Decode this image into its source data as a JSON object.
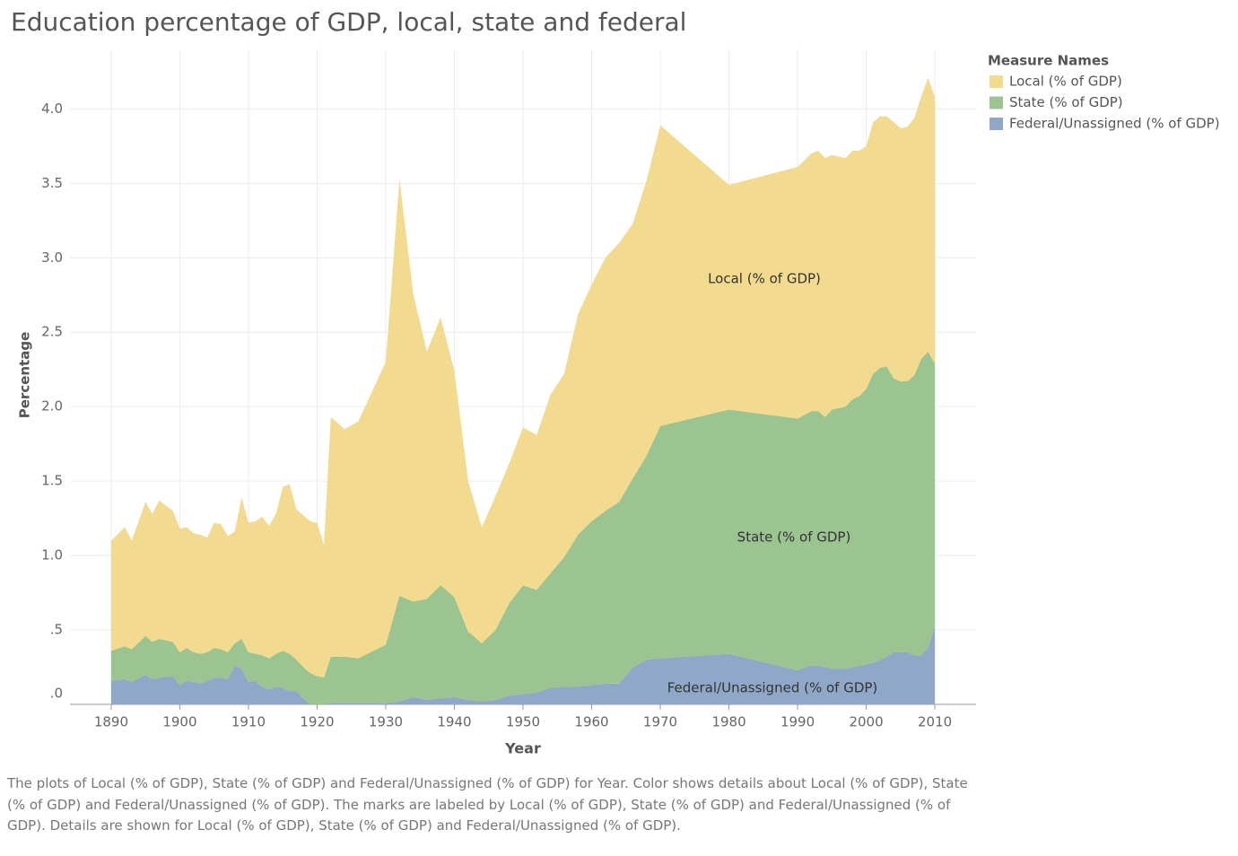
{
  "chart_data": {
    "type": "stacked-area",
    "title": "Education percentage of GDP, local, state and federal",
    "x_label": "Year",
    "y_label": "Percentage",
    "legend_title": "Measure Names",
    "legend": "right",
    "grid": true,
    "caption": "The plots of Local (% of GDP), State (% of GDP) and Federal/Unassigned (% of GDP) for Year.  Color shows details about Local (% of GDP), State (% of GDP) and Federal/Unassigned (% of GDP).  The marks are labeled by Local (% of GDP), State (% of GDP) and Federal/Unassigned (% of GDP).  Details are shown for Local (% of GDP), State (% of GDP) and Federal/Unassigned (% of GDP).",
    "xlim": [
      1884,
      2016
    ],
    "xticks": [
      1890,
      1900,
      1910,
      1920,
      1930,
      1940,
      1950,
      1960,
      1970,
      1980,
      1990,
      2000,
      2010
    ],
    "ylim": [
      0,
      4.4
    ],
    "yticks": [
      {
        "value": 0,
        "label": ".0"
      },
      {
        "value": 0.5,
        "label": ".5"
      },
      {
        "value": 1,
        "label": "1.0"
      },
      {
        "value": 1.5,
        "label": "1.5"
      },
      {
        "value": 2,
        "label": "2.0"
      },
      {
        "value": 2.5,
        "label": "2.5"
      },
      {
        "value": 3,
        "label": "3.0"
      },
      {
        "value": 3.5,
        "label": "3.5"
      },
      {
        "value": 4,
        "label": "4.0"
      }
    ],
    "x": [
      1890,
      1892,
      1893,
      1895,
      1896,
      1897,
      1899,
      1900,
      1901,
      1902,
      1903,
      1904,
      1905,
      1906,
      1907,
      1908,
      1909,
      1910,
      1911,
      1912,
      1913,
      1914,
      1915,
      1916,
      1917,
      1918,
      1919,
      1920,
      1921,
      1922,
      1924,
      1926,
      1930,
      1932,
      1934,
      1936,
      1938,
      1940,
      1942,
      1944,
      1946,
      1948,
      1950,
      1952,
      1954,
      1956,
      1958,
      1960,
      1962,
      1964,
      1966,
      1968,
      1970,
      1980,
      1990,
      1992,
      1993,
      1994,
      1995,
      1997,
      1998,
      1999,
      2000,
      2001,
      2002,
      2003,
      2004,
      2005,
      2006,
      2007,
      2008,
      2009,
      2010
    ],
    "series": [
      {
        "name": "Local (% of GDP)",
        "color": "#f2db8f",
        "values": [
          0.74,
          0.8,
          0.73,
          0.9,
          0.86,
          0.93,
          0.88,
          0.83,
          0.81,
          0.8,
          0.8,
          0.77,
          0.84,
          0.84,
          0.78,
          0.75,
          0.95,
          0.87,
          0.89,
          0.93,
          0.89,
          0.94,
          1.1,
          1.14,
          1.01,
          1.02,
          1.02,
          1.03,
          0.89,
          1.61,
          1.53,
          1.59,
          1.9,
          2.8,
          2.07,
          1.66,
          1.8,
          1.52,
          1.01,
          0.78,
          0.9,
          0.94,
          1.06,
          1.04,
          1.2,
          1.23,
          1.48,
          1.59,
          1.7,
          1.74,
          1.71,
          1.85,
          2.02,
          1.51,
          1.69,
          1.73,
          1.75,
          1.74,
          1.71,
          1.67,
          1.67,
          1.65,
          1.63,
          1.69,
          1.69,
          1.68,
          1.72,
          1.7,
          1.71,
          1.73,
          1.76,
          1.84,
          1.79
        ]
      },
      {
        "name": "State (% of GDP)",
        "color": "#9bc490",
        "values": [
          0.2,
          0.22,
          0.22,
          0.26,
          0.25,
          0.26,
          0.23,
          0.22,
          0.22,
          0.2,
          0.2,
          0.19,
          0.2,
          0.19,
          0.18,
          0.15,
          0.2,
          0.2,
          0.18,
          0.21,
          0.21,
          0.22,
          0.25,
          0.25,
          0.21,
          0.21,
          0.21,
          0.19,
          0.18,
          0.31,
          0.31,
          0.3,
          0.39,
          0.71,
          0.64,
          0.68,
          0.76,
          0.67,
          0.46,
          0.39,
          0.47,
          0.62,
          0.73,
          0.69,
          0.77,
          0.87,
          1.02,
          1.1,
          1.16,
          1.22,
          1.27,
          1.37,
          1.56,
          1.64,
          1.69,
          1.71,
          1.71,
          1.68,
          1.74,
          1.76,
          1.8,
          1.81,
          1.85,
          1.94,
          1.96,
          1.95,
          1.84,
          1.82,
          1.82,
          1.88,
          1.99,
          1.99,
          1.76
        ]
      },
      {
        "name": "Federal/Unassigned (% of GDP)",
        "color": "#8fa8c8",
        "values": [
          0.16,
          0.17,
          0.15,
          0.2,
          0.17,
          0.18,
          0.19,
          0.13,
          0.16,
          0.15,
          0.14,
          0.16,
          0.18,
          0.18,
          0.17,
          0.26,
          0.24,
          0.15,
          0.16,
          0.12,
          0.1,
          0.12,
          0.11,
          0.09,
          0.09,
          0.04,
          0.0,
          0.0,
          0.0,
          0.01,
          0.01,
          0.01,
          0.01,
          0.02,
          0.05,
          0.03,
          0.04,
          0.05,
          0.03,
          0.02,
          0.03,
          0.06,
          0.07,
          0.08,
          0.11,
          0.12,
          0.12,
          0.13,
          0.14,
          0.14,
          0.25,
          0.3,
          0.31,
          0.34,
          0.23,
          0.26,
          0.26,
          0.25,
          0.24,
          0.24,
          0.25,
          0.26,
          0.27,
          0.28,
          0.3,
          0.32,
          0.35,
          0.35,
          0.35,
          0.33,
          0.33,
          0.38,
          0.53
        ]
      }
    ]
  }
}
